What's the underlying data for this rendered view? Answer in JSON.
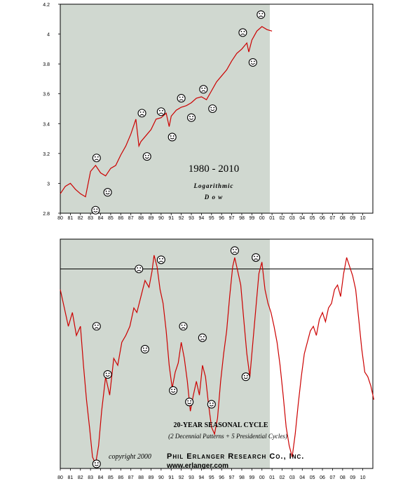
{
  "chart_data": [
    {
      "type": "line",
      "title": "1980 - 2010",
      "subtitle_line1": "Logarithmic",
      "subtitle_line2": "D o w",
      "y_ticks": [
        "4.2",
        "4",
        "3.8",
        "3.6",
        "3.4",
        "3.2",
        "3",
        "2.8"
      ],
      "ylim": [
        2.8,
        4.2
      ],
      "x_ticks": [
        "80",
        "81",
        "82",
        "83",
        "84",
        "85",
        "86",
        "87",
        "88",
        "89",
        "90",
        "91",
        "92",
        "93",
        "94",
        "95",
        "96",
        "97",
        "98",
        "99",
        "00",
        "01",
        "02",
        "03",
        "04",
        "05",
        "06",
        "07",
        "08",
        "09",
        "10"
      ],
      "shaded_range": [
        1980,
        2000
      ],
      "series_color": "#cc0000",
      "series": [
        {
          "x": [
            1980.0,
            1980.5,
            1981.0,
            1981.5,
            1982.0,
            1982.5,
            1983.0,
            1983.5,
            1984.0,
            1984.5,
            1985.0,
            1985.5,
            1986.0,
            1986.5,
            1987.0,
            1987.5,
            1987.8,
            1988.0,
            1988.5,
            1989.0,
            1989.5,
            1990.0,
            1990.5,
            1990.8,
            1991.0,
            1991.5,
            1992.0,
            1992.5,
            1993.0,
            1993.5,
            1994.0,
            1994.5,
            1995.0,
            1995.5,
            1996.0,
            1996.5,
            1997.0,
            1997.5,
            1998.0,
            1998.5,
            1998.7,
            1999.0,
            1999.5,
            2000.0,
            2000.5,
            2001.0
          ],
          "y": [
            2.93,
            2.98,
            3.0,
            2.96,
            2.93,
            2.91,
            3.08,
            3.12,
            3.07,
            3.05,
            3.1,
            3.12,
            3.19,
            3.25,
            3.33,
            3.43,
            3.25,
            3.28,
            3.32,
            3.36,
            3.43,
            3.44,
            3.47,
            3.38,
            3.45,
            3.49,
            3.51,
            3.52,
            3.54,
            3.57,
            3.58,
            3.56,
            3.62,
            3.68,
            3.72,
            3.76,
            3.82,
            3.87,
            3.9,
            3.94,
            3.88,
            3.96,
            4.02,
            4.05,
            4.03,
            4.02
          ]
        }
      ],
      "faces": [
        {
          "mood": "sad",
          "x": 1983.6,
          "y": 3.17
        },
        {
          "mood": "happy",
          "x": 1983.5,
          "y": 2.82
        },
        {
          "mood": "happy",
          "x": 1984.7,
          "y": 2.94
        },
        {
          "mood": "sad",
          "x": 1988.1,
          "y": 3.47
        },
        {
          "mood": "happy",
          "x": 1988.6,
          "y": 3.18
        },
        {
          "mood": "sad",
          "x": 1990.0,
          "y": 3.48
        },
        {
          "mood": "happy",
          "x": 1991.1,
          "y": 3.31
        },
        {
          "mood": "sad",
          "x": 1992.0,
          "y": 3.57
        },
        {
          "mood": "happy",
          "x": 1993.0,
          "y": 3.44
        },
        {
          "mood": "sad",
          "x": 1994.2,
          "y": 3.63
        },
        {
          "mood": "happy",
          "x": 1995.1,
          "y": 3.5
        },
        {
          "mood": "sad",
          "x": 1998.1,
          "y": 4.01
        },
        {
          "mood": "happy",
          "x": 1999.1,
          "y": 3.81
        },
        {
          "mood": "sad",
          "x": 1999.9,
          "y": 4.13
        }
      ]
    },
    {
      "type": "line",
      "caption": "20-YEAR SEASONAL CYCLE",
      "caption_sub": "(2 Decennial Patterns +  5 Presidential Cycles)",
      "copyright": "copyright 2000",
      "firm": "Phil Erlanger Research Co., Inc.",
      "url": "www.erlanger.com",
      "x_ticks": [
        "80",
        "81",
        "82",
        "83",
        "84",
        "85",
        "86",
        "87",
        "88",
        "89",
        "90",
        "91",
        "92",
        "93",
        "94",
        "95",
        "96",
        "97",
        "98",
        "99",
        "00",
        "01",
        "02",
        "03",
        "04",
        "05",
        "06",
        "07",
        "08",
        "09",
        "10"
      ],
      "reference_line": 0.87,
      "ylim": [
        0,
        1
      ],
      "shaded_range": [
        1980,
        2000
      ],
      "series_color": "#cc0000",
      "series": [
        {
          "x": [
            1980.0,
            1980.4,
            1980.8,
            1981.2,
            1981.6,
            1982.0,
            1982.3,
            1982.6,
            1982.9,
            1983.2,
            1983.5,
            1983.8,
            1984.1,
            1984.5,
            1984.9,
            1985.3,
            1985.7,
            1986.1,
            1986.5,
            1986.9,
            1987.3,
            1987.6,
            1988.0,
            1988.4,
            1988.8,
            1989.1,
            1989.3,
            1989.6,
            1989.9,
            1990.2,
            1990.5,
            1990.8,
            1991.1,
            1991.4,
            1991.7,
            1992.0,
            1992.3,
            1992.6,
            1992.9,
            1993.2,
            1993.5,
            1993.8,
            1994.1,
            1994.4,
            1994.7,
            1995.0,
            1995.3,
            1995.6,
            1995.9,
            1996.2,
            1996.5,
            1996.8,
            1997.1,
            1997.3,
            1997.6,
            1997.9,
            1998.2,
            1998.5,
            1998.8,
            1999.1,
            1999.4,
            1999.7,
            2000.0,
            2000.3,
            2000.6,
            2000.9,
            2001.2,
            2001.5,
            2001.8,
            2002.1,
            2002.4,
            2002.7,
            2003.0,
            2003.3,
            2003.6,
            2003.9,
            2004.2,
            2004.5,
            2004.8,
            2005.1,
            2005.4,
            2005.7,
            2006.0,
            2006.3,
            2006.6,
            2006.9,
            2007.2,
            2007.5,
            2007.8,
            2008.1,
            2008.4,
            2008.7,
            2009.0,
            2009.3,
            2009.6,
            2009.9,
            2010.2,
            2010.5,
            2010.8,
            2011.1
          ],
          "y": [
            0.78,
            0.7,
            0.62,
            0.68,
            0.58,
            0.62,
            0.45,
            0.3,
            0.18,
            0.05,
            0.02,
            0.1,
            0.25,
            0.4,
            0.32,
            0.48,
            0.45,
            0.55,
            0.58,
            0.62,
            0.7,
            0.68,
            0.75,
            0.82,
            0.79,
            0.86,
            0.93,
            0.88,
            0.78,
            0.72,
            0.6,
            0.45,
            0.35,
            0.42,
            0.46,
            0.55,
            0.48,
            0.38,
            0.25,
            0.32,
            0.38,
            0.32,
            0.45,
            0.4,
            0.28,
            0.18,
            0.15,
            0.22,
            0.38,
            0.5,
            0.6,
            0.75,
            0.88,
            0.92,
            0.86,
            0.8,
            0.65,
            0.5,
            0.4,
            0.55,
            0.7,
            0.85,
            0.9,
            0.78,
            0.72,
            0.68,
            0.62,
            0.55,
            0.45,
            0.32,
            0.18,
            0.1,
            0.05,
            0.15,
            0.28,
            0.4,
            0.5,
            0.55,
            0.6,
            0.62,
            0.58,
            0.65,
            0.68,
            0.64,
            0.7,
            0.72,
            0.78,
            0.8,
            0.75,
            0.85,
            0.92,
            0.88,
            0.84,
            0.78,
            0.65,
            0.52,
            0.42,
            0.4,
            0.36,
            0.3
          ]
        }
      ],
      "faces": [
        {
          "mood": "sad",
          "x": 1983.6,
          "y": 0.62
        },
        {
          "mood": "happy",
          "x": 1983.6,
          "y": 0.02
        },
        {
          "mood": "happy",
          "x": 1984.7,
          "y": 0.41
        },
        {
          "mood": "sad",
          "x": 1987.8,
          "y": 0.87
        },
        {
          "mood": "happy",
          "x": 1988.4,
          "y": 0.52
        },
        {
          "mood": "sad",
          "x": 1990.0,
          "y": 0.91
        },
        {
          "mood": "happy",
          "x": 1991.2,
          "y": 0.34
        },
        {
          "mood": "sad",
          "x": 1992.2,
          "y": 0.62
        },
        {
          "mood": "happy",
          "x": 1992.8,
          "y": 0.29
        },
        {
          "mood": "sad",
          "x": 1994.1,
          "y": 0.57
        },
        {
          "mood": "happy",
          "x": 1995.0,
          "y": 0.28
        },
        {
          "mood": "sad",
          "x": 1997.3,
          "y": 0.95
        },
        {
          "mood": "happy",
          "x": 1998.4,
          "y": 0.4
        },
        {
          "mood": "sad",
          "x": 1999.4,
          "y": 0.92
        }
      ]
    }
  ]
}
